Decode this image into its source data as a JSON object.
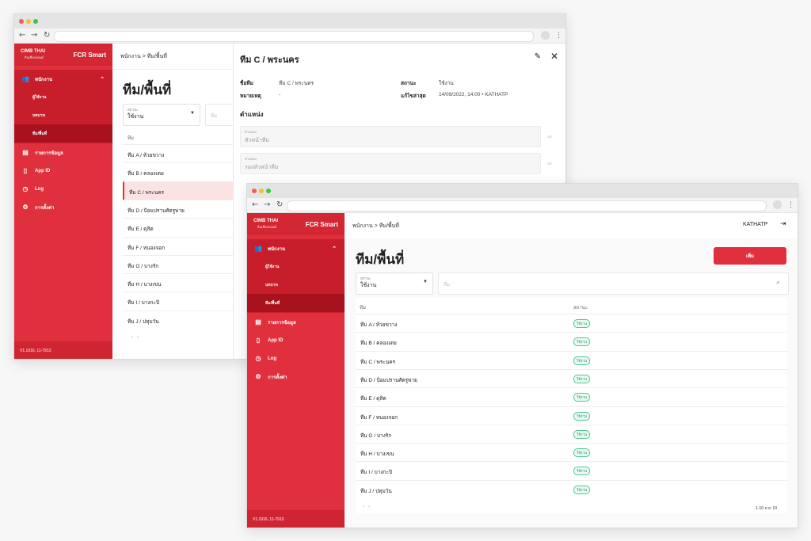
{
  "app": {
    "logo_text": "CIMB THAI",
    "logo_sub": "สินเชื่อรถยนต์",
    "name": "FCR Smart",
    "version": "V1.1916, 11-7913"
  },
  "sidebar": {
    "group_label": "พนักงาน",
    "sub_items": [
      "ผู้ใช้งาน",
      "บทบาท",
      "ทีม/พื้นที่"
    ],
    "items": [
      {
        "label": "รายการข้อมูล",
        "icon": "list-icon"
      },
      {
        "label": "App ID",
        "icon": "phone-icon"
      },
      {
        "label": "Log",
        "icon": "history-icon"
      },
      {
        "label": "การตั้งค่า",
        "icon": "gear-icon"
      }
    ]
  },
  "breadcrumb": "พนักงาน > ทีม/พื้นที่",
  "page_title": "ทีม/พื้นที่",
  "filter": {
    "label": "สถานะ",
    "value": "ใช้งาน",
    "search_placeholder": "ทีม"
  },
  "table": {
    "col_team": "ทีม",
    "col_status": "สถานะ",
    "rows": [
      {
        "name": "ทีม A / ห้วยขวาง",
        "status": "ใช้งาน"
      },
      {
        "name": "ทีม B / คลองเตย",
        "status": "ใช้งาน"
      },
      {
        "name": "ทีม C / พระนคร",
        "status": "ใช้งาน"
      },
      {
        "name": "ทีม D / ป้อมปราบศัตรูพ่าย",
        "status": "ใช้งาน"
      },
      {
        "name": "ทีม E / ดุสิต",
        "status": "ใช้งาน"
      },
      {
        "name": "ทีม F / หนองจอก",
        "status": "ใช้งาน"
      },
      {
        "name": "ทีม G / บางรัก",
        "status": "ใช้งาน"
      },
      {
        "name": "ทีม H / บางเขน",
        "status": "ใช้งาน"
      },
      {
        "name": "ทีม I / บางกะปิ",
        "status": "ใช้งาน"
      },
      {
        "name": "ทีม J / ปทุมวัน",
        "status": "ใช้งาน"
      }
    ],
    "pagination": "1-10 จาก 10"
  },
  "add_button": "เพิ่ม",
  "user": "KATHATP",
  "detail": {
    "title": "ทีม C / พระนคร",
    "team_name_label": "ชื่อทีม",
    "team_name_value": "ทีม C / พระนคร",
    "status_label": "สถานะ",
    "status_value": "ใช้งาน",
    "note_label": "หมายเหตุ",
    "note_value": "-",
    "updated_label": "แก้ไขล่าสุด",
    "updated_value": "14/09/2022, 14:00 • KATHATP",
    "positions_heading": "ตำแหน่ง",
    "positions": [
      {
        "label": "ตำแหน่ง",
        "value": "หัวหน้าทีม",
        "action": "ลบ"
      },
      {
        "label": "ตำแหน่ง",
        "value": "รองหัวหน้าทีม",
        "action": "ลบ"
      }
    ]
  },
  "colors": {
    "brand_red": "#e0303d",
    "active_badge": "#1e9f6a"
  }
}
